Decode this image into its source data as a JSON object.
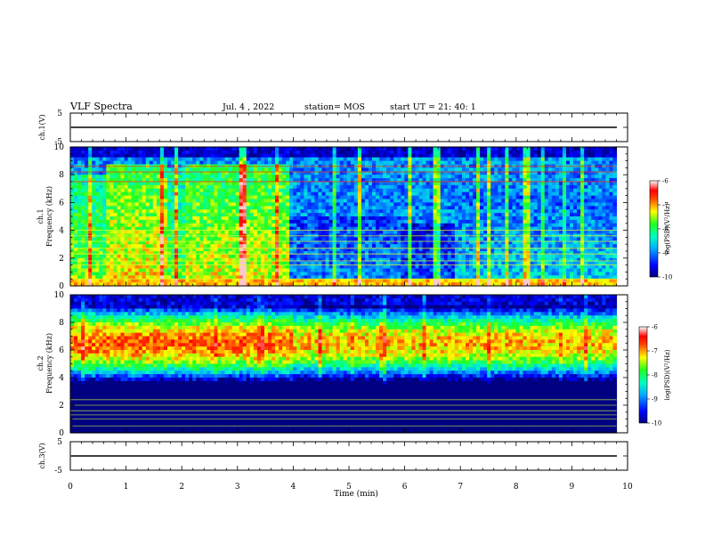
{
  "header": {
    "title": "VLF Spectra",
    "date": "Jul. 4 , 2022",
    "station": "station= MOS",
    "start": "start UT = 21: 40: 1"
  },
  "chart_data": [
    {
      "type": "line",
      "panel": "ch1-waveform",
      "ylabel": "ch.1(V)",
      "ylim": [
        -5,
        5
      ],
      "yticks": [
        "5",
        "-5"
      ],
      "xlim": [
        0,
        10
      ],
      "series": [
        {
          "values_description": "flat trace near 0 V",
          "y": 0
        }
      ]
    },
    {
      "type": "heatmap",
      "panel": "ch1-spectrogram",
      "ylabel": "ch.1\nFrequency (kHz)",
      "xlim": [
        0,
        10
      ],
      "ylim": [
        0,
        10
      ],
      "yticks": [
        "0",
        "2",
        "4",
        "6",
        "8",
        "10"
      ],
      "colorbar": {
        "label": "log(PSD)(V²/Hz)",
        "ticks": [
          "-6",
          "-7",
          "-8",
          "-9",
          "-10"
        ],
        "range": [
          -10,
          -6
        ]
      },
      "segments": [
        {
          "t": [
            0.0,
            0.65
          ],
          "band_top": 8.0,
          "band_level": -7.6
        },
        {
          "t": [
            0.65,
            1.75
          ],
          "band_top": 8.8,
          "band_level": -7.2
        },
        {
          "t": [
            1.75,
            2.05
          ],
          "band_top": 8.5,
          "band_level": -7.7
        },
        {
          "t": [
            2.05,
            3.95
          ],
          "band_top": 8.8,
          "band_level": -7.3
        },
        {
          "t": [
            3.95,
            5.9
          ],
          "band_top": 5.0,
          "band_level": -8.9
        },
        {
          "t": [
            5.9,
            6.9
          ],
          "band_top": 4.5,
          "band_level": -9.2
        },
        {
          "t": [
            6.9,
            9.8
          ],
          "band_top": 6.5,
          "band_level": -8.6
        }
      ],
      "lines_khz": [
        0.5,
        1.5,
        1.8,
        2.3,
        2.7,
        3.2,
        3.6,
        4.0,
        7.5,
        8.2,
        8.6
      ]
    },
    {
      "type": "heatmap",
      "panel": "ch2-spectrogram",
      "ylabel": "ch.2\nFrequency (kHz)",
      "xlim": [
        0,
        10
      ],
      "ylim": [
        0,
        10
      ],
      "yticks": [
        "0",
        "2",
        "4",
        "6",
        "8",
        "10"
      ],
      "colorbar": {
        "label": "log(PSD)(V²/Hz)",
        "ticks": [
          "-6",
          "-7",
          "-8",
          "-9",
          "-10"
        ],
        "range": [
          -10,
          -6
        ]
      },
      "center_khz": 6.5,
      "segments": [
        {
          "t": [
            0.0,
            4.0
          ],
          "peak_level": -6.8
        },
        {
          "t": [
            4.0,
            9.8
          ],
          "peak_level": -7.1
        }
      ],
      "lines_khz": [
        0.5,
        1.0,
        1.3,
        1.6,
        2.0,
        2.4
      ]
    },
    {
      "type": "line",
      "panel": "ch3-waveform",
      "ylabel": "ch.3(V)",
      "ylim": [
        -5,
        5
      ],
      "yticks": [
        "5",
        "-5"
      ],
      "xlim": [
        0,
        10
      ],
      "xlabel": "Time (min)",
      "xticks": [
        "0",
        "1",
        "2",
        "3",
        "4",
        "5",
        "6",
        "7",
        "8",
        "9",
        "10"
      ],
      "series": [
        {
          "values_description": "flat trace near 0 V",
          "y": 0
        }
      ]
    }
  ]
}
